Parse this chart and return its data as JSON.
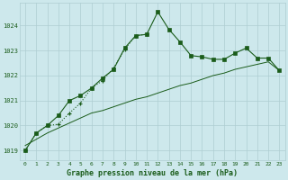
{
  "title": "Graphe pression niveau de la mer (hPa)",
  "background_color": "#cde8ec",
  "grid_color": "#aecdd2",
  "line_color": "#1a5c1a",
  "ylim": [
    1018.6,
    1024.9
  ],
  "yticks": [
    1019,
    1020,
    1021,
    1022,
    1023,
    1024
  ],
  "xlim": [
    -0.5,
    23.5
  ],
  "series_dot_x": [
    0,
    1,
    2,
    3,
    4,
    5,
    6,
    7,
    8,
    9,
    10,
    11
  ],
  "series_dot_y": [
    1019.0,
    1019.7,
    1020.0,
    1020.05,
    1020.5,
    1020.9,
    1021.5,
    1021.8,
    1022.3,
    1023.05,
    1023.6,
    1023.65
  ],
  "series_main_x": [
    0,
    1,
    2,
    3,
    4,
    5,
    6,
    7,
    8,
    9,
    10,
    11,
    12,
    13,
    14,
    15,
    16,
    17,
    18,
    19,
    20,
    21,
    22,
    23
  ],
  "series_main_y": [
    1019.0,
    1019.7,
    1020.0,
    1020.4,
    1021.0,
    1021.2,
    1021.5,
    1021.9,
    1022.25,
    1023.1,
    1023.6,
    1023.65,
    1024.55,
    1023.85,
    1023.35,
    1022.8,
    1022.75,
    1022.65,
    1022.65,
    1022.9,
    1023.1,
    1022.7,
    1022.7,
    1022.2
  ],
  "series_trend_x": [
    0,
    1,
    2,
    3,
    4,
    5,
    6,
    7,
    8,
    9,
    10,
    11,
    12,
    13,
    14,
    15,
    16,
    17,
    18,
    19,
    20,
    21,
    22,
    23
  ],
  "series_trend_y": [
    1019.2,
    1019.45,
    1019.7,
    1019.9,
    1020.1,
    1020.3,
    1020.5,
    1020.6,
    1020.75,
    1020.9,
    1021.05,
    1021.15,
    1021.3,
    1021.45,
    1021.6,
    1021.7,
    1021.85,
    1022.0,
    1022.1,
    1022.25,
    1022.35,
    1022.45,
    1022.55,
    1022.2
  ],
  "font_color": "#1a5c1a"
}
